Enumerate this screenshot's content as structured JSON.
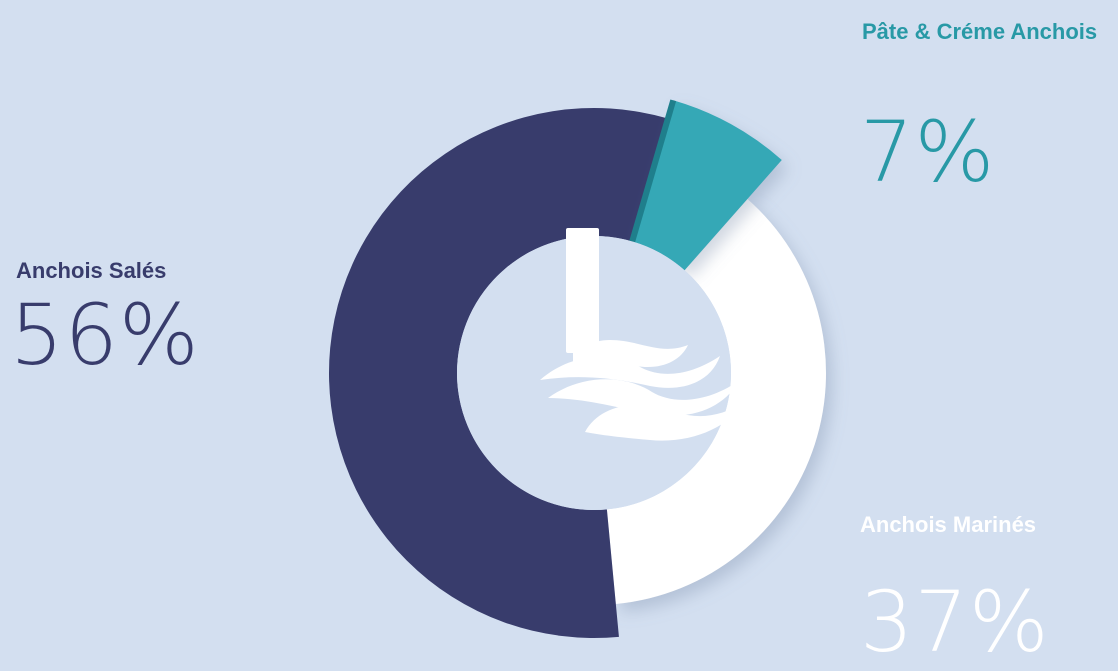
{
  "chart_data": {
    "type": "pie",
    "title": "",
    "slices": [
      {
        "label": "Anchois Salés",
        "value": 56,
        "display": "56%",
        "color": "#383c6c",
        "label_color": "#383c6c"
      },
      {
        "label": "Anchois Marinés",
        "value": 37,
        "display": "37%",
        "color": "#ffffff",
        "label_color": "#ffffff"
      },
      {
        "label": "Pâte & Créme Anchois",
        "value": 7,
        "display": "7%",
        "color": "#36a8b6",
        "label_color": "#2899a6"
      }
    ],
    "style": "donut",
    "legend": "labels beside slices"
  },
  "colors": {
    "background": "#d3dff0",
    "center": "#d3dff0",
    "logo": "#ffffff"
  },
  "logo_icon": "anchovy-wave-logo-icon"
}
